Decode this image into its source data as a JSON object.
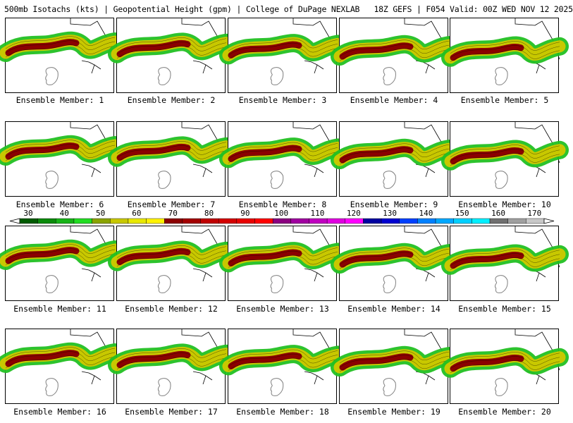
{
  "header": {
    "title": "500mb Isotachs (kts) | Geopotential Height (gpm) | College of DuPage NEXLAB   18Z GEFS | F054 Valid: 00Z WED NOV 12 2025"
  },
  "colorbar": {
    "labels": [
      "30",
      "40",
      "50",
      "60",
      "70",
      "80",
      "90",
      "100",
      "110",
      "120",
      "130",
      "140",
      "150",
      "160",
      "170"
    ],
    "colors": [
      "#005a00",
      "#0a8a0a",
      "#17b317",
      "#22dd22",
      "#8aa300",
      "#c8c800",
      "#e8e800",
      "#fff200",
      "#8b0000",
      "#a30000",
      "#c00000",
      "#d40000",
      "#e80000",
      "#ff0000",
      "#8b0080",
      "#a000a0",
      "#c000c0",
      "#e000e0",
      "#ff00ff",
      "#0000a0",
      "#0000d0",
      "#0040ff",
      "#0080ff",
      "#00a8ff",
      "#00d0ff",
      "#00f0ff",
      "#707070",
      "#a0a0a0",
      "#c8c8c8"
    ]
  },
  "members": [
    "Ensemble Member: 1",
    "Ensemble Member: 2",
    "Ensemble Member: 3",
    "Ensemble Member: 4",
    "Ensemble Member: 5",
    "Ensemble Member: 6",
    "Ensemble Member: 7",
    "Ensemble Member: 8",
    "Ensemble Member: 9",
    "Ensemble Member: 10",
    "Ensemble Member: 11",
    "Ensemble Member: 12",
    "Ensemble Member: 13",
    "Ensemble Member: 14",
    "Ensemble Member: 15",
    "Ensemble Member: 16",
    "Ensemble Member: 17",
    "Ensemble Member: 18",
    "Ensemble Member: 19",
    "Ensemble Member: 20"
  ],
  "colors": {
    "jet_outer": "#22c022",
    "jet_mid": "#c8c800",
    "jet_core": "#8b0000",
    "coastline": "#000000",
    "height_contour": "#808080"
  }
}
